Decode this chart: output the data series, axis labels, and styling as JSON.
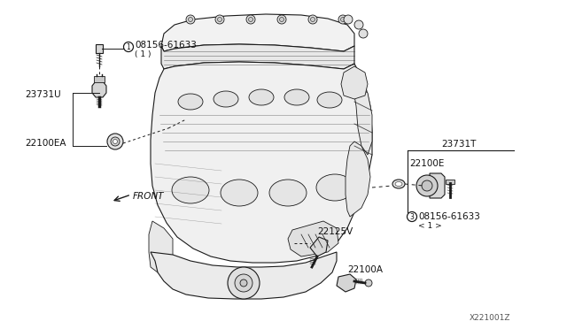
{
  "background_color": "#ffffff",
  "line_color": "#1a1a1a",
  "fig_width": 6.4,
  "fig_height": 3.72,
  "dpi": 100,
  "labels": {
    "part1_id": "08156-61633",
    "part1_sub": "( 1 )",
    "part1_circle": "1",
    "part2_id": "23731U",
    "part3_id": "22100EA",
    "part4_id": "23731T",
    "part5_id": "22100E",
    "part6_id": "08156-61633",
    "part6_sub": "< 1 >",
    "part6_circle": "3",
    "part7_id": "22125V",
    "part8_id": "22100A",
    "diagram_code": "X221001Z",
    "front_label": "FRONT"
  }
}
